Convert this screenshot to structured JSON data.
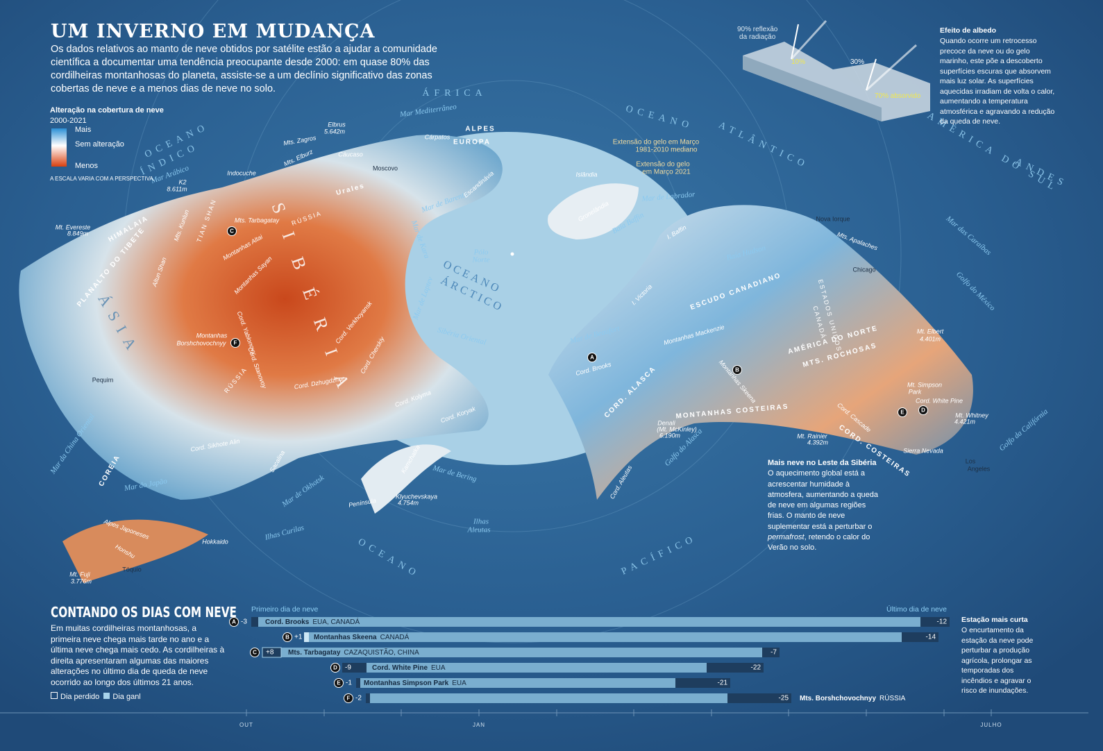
{
  "header": {
    "title": "UM INVERNO EM MUDANÇA",
    "text": "Os dados relativos ao manto de neve obtidos por satélite estão a ajudar a comunidade científica a documentar uma tendência preocupante desde 2000: em quase 80% das cordilheiras montanhosas do planeta, assiste-se a um declínio significativo das zonas cobertas de neve e a menos dias de neve no solo."
  },
  "legend": {
    "title": "Alteração na cobertura de neve",
    "period": "2000-2021",
    "more": "Mais",
    "none": "Sem alteração",
    "less": "Menos",
    "note": "A ESCALA VARIA COM A PERSPECTIVA."
  },
  "albedo": {
    "reflect": "90% reflexão",
    "reflect2": "da radiação",
    "p10": "10%",
    "p30": "30%",
    "absorbed": "70% absorvido",
    "title": "Efeito de albedo",
    "text": "Quando ocorre um retrocesso precoce da neve ou do gelo marinho, este põe a descoberto superfícies escuras que absorvem mais luz solar. As superfícies aquecidas irradiam de volta o calor, aumentando a temperatura atmosférica e agravando a redução da queda de neve."
  },
  "siberia": {
    "title": "Mais neve no Leste da Sibéria",
    "text_before": "O aquecimento global está a acrescentar humidade à atmosfera, aumentando a queda de neve em algumas regiões frias. O manto de neve suplementar está a perturbar o ",
    "italic": "permafrost",
    "text_after": ", retendo o calor do Verão no solo."
  },
  "counting": {
    "title": "CONTANDO OS DIAS COM NEVE",
    "text": "Em muitas cordilheiras montanhosas, a primeira neve chega mais tarde no ano e a última neve chega mais cedo. As cordilheiras à direita apresentaram algumas das maiores alterações no último dia de queda de neve ocorrido ao longo dos últimos 21 anos.",
    "lost": "Dia perdido",
    "gained": "Dia ganl",
    "first_label": "Primeiro dia de neve",
    "last_label": "Último dia de neve",
    "rows": [
      {
        "letter": "A",
        "first": "-3",
        "name": "Cord. Brooks",
        "country": "EUA, CANADÁ",
        "last": "-12"
      },
      {
        "letter": "B",
        "first": "+1",
        "name": "Montanhas Skeena",
        "country": "CANADÁ",
        "last": "-14"
      },
      {
        "letter": "C",
        "first": "+8",
        "name": "Mts. Tarbagatay",
        "country": "CAZAQUISTÃO, CHINA",
        "last": "-7"
      },
      {
        "letter": "D",
        "first": "-9",
        "name": "Cord. White Pine",
        "country": "EUA",
        "last": "-22"
      },
      {
        "letter": "E",
        "first": "-1",
        "name": "Montanhas Simpson Park",
        "country": "EUA",
        "last": "-21"
      },
      {
        "letter": "F",
        "first": "-2",
        "name": "Mts. Borshchovochnyy",
        "country": "RÚSSIA",
        "last": "-25"
      }
    ],
    "months": [
      "OUT",
      "JAN",
      "JULHO"
    ],
    "shortest_title": "Estação mais curta",
    "shortest_text": "O encurtamento da estação da neve pode perturbar a produção agrícola, prolongar as temporadas dos incêndios e agravar o risco de inundações."
  },
  "map": {
    "labels": [
      "ÁFRICA",
      "Mar Mediterrâneo",
      "OCEANO",
      "ÍNDICO",
      "Mar Arábico",
      "Elbrus",
      "5.642m",
      "Mts. Zagros",
      "Mts. Elburz",
      "Cáucaso",
      "Cárpatos",
      "ALPES",
      "EUROPA",
      "Moscovo",
      "Urales",
      "Mar de Barents",
      "Escandinávia",
      "Islândia",
      "OCEANO",
      "ATLÂNTICO",
      "AMÉRICA DO SUL",
      "ANDES",
      "Extensão do gelo em Março",
      "1981-2010 mediano",
      "Extensão do gelo",
      "em Março 2021",
      "Gronelândia",
      "Mar de Labrador",
      "Baía Baffin",
      "I. Baffin",
      "Baía Hudson",
      "Nova Iorque",
      "Mts. Apalaches",
      "Chicago",
      "Mar das Caraíbas",
      "Golfo do México",
      "Pólo",
      "Norte",
      "OCEANO",
      "ÁRCTICO",
      "Mar de Kara",
      "Mar de Laptev",
      "Sibéria Oriental",
      "Mar de Beaufort",
      "I. Victoria",
      "ESCUDO CANADIANO",
      "AMÉRICA DO NORTE",
      "MTS. ROCHOSAS",
      "ESTADOS UNIDOS",
      "CANADÁ",
      "Mt. Elbert",
      "4.401m",
      "Montanhas Mackenzie",
      "Cord. Brooks",
      "Montanhas Skeena",
      "CORD. ALASCA",
      "MONTANHAS COSTEIRAS",
      "Mt. Simpson",
      "Park",
      "Cord. White Pine",
      "Mt. Whitney",
      "4.421m",
      "Cord. Cascade",
      "Mt. Rainier",
      "4.392m",
      "CORD. COSTEIRAS",
      "Sierra Nevada",
      "Golfo da Califórnia",
      "Los",
      "Angeles",
      "Denali",
      "(Mt. McKinley)",
      "6.190m",
      "Golfo do Alasca",
      "Cord. Aleutas",
      "PACÍFICO",
      "OCEANO",
      "Ilhas",
      "Aleutas",
      "Mar de Bering",
      "Kamchatka",
      "Península",
      "Klyuchevskaya",
      "4.754m",
      "Mar de Okhotsk",
      "Sacalina",
      "Ilhas Curilas",
      "Hokkaido",
      "Cord. Koryak",
      "Cord. Kolyma",
      "Cord. Cherskiy",
      "Cord. Dzhugdzhur",
      "Cord. Verkhoyansk",
      "Montanhas Sayan",
      "Montanhas Altai",
      "Mts. Tarbagatay",
      "RÚSSIA",
      "SIBÉRIA",
      "RÚSSIA",
      "Montanhas",
      "Borshchovochnyy",
      "Cord. Yablonovy",
      "Cord. Stanovoy",
      "Pequim",
      "ÁSIA",
      "Mar da China Oriental",
      "COREIA",
      "Mar do Japão",
      "Cord. Sikhote Alin",
      "Alpes Japoneses",
      "Honshu",
      "Mt. Fuji",
      "3.776m",
      "Tóquio",
      "Mt. Evereste",
      "8.849m",
      "HIMALAIA",
      "PLANALTO DO TIBETE",
      "Altun Shan",
      "Mts. Kunlun",
      "TIAN SHAN",
      "K2",
      "8.611m",
      "Indocuche"
    ]
  }
}
